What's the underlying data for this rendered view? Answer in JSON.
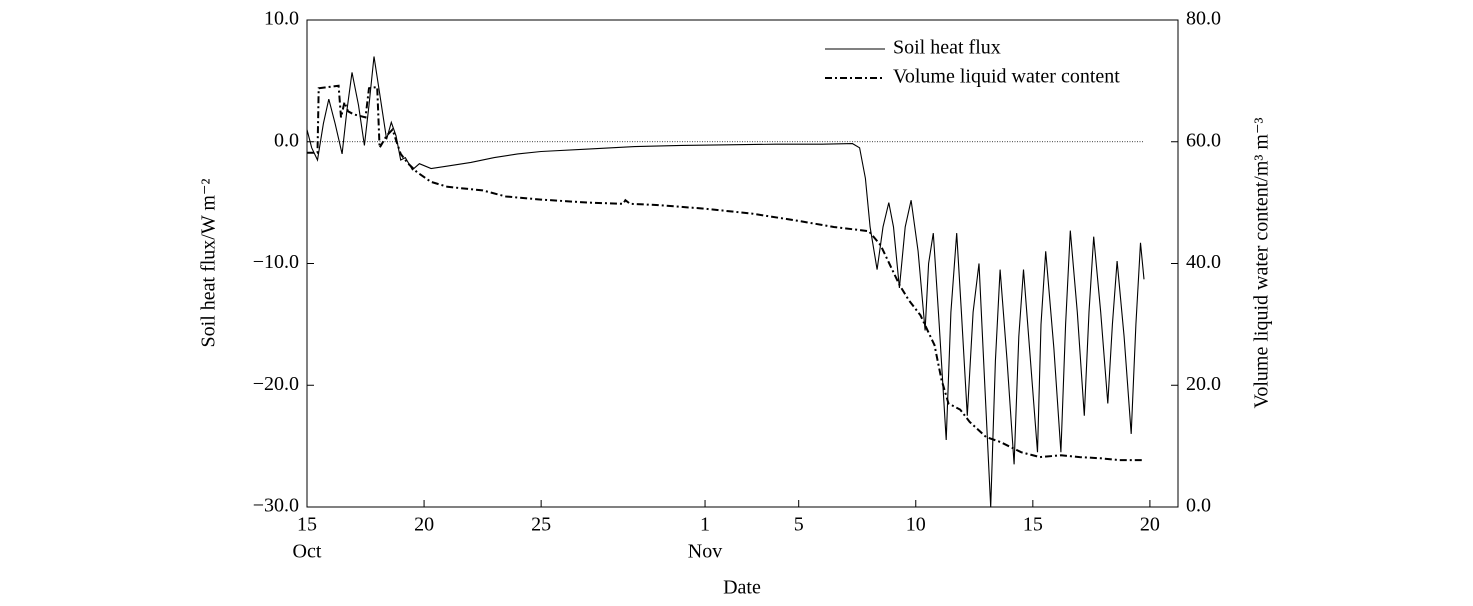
{
  "chart_data": {
    "type": "line",
    "xlabel": "Date",
    "ylabel": "Soil heat flux/W m⁻²",
    "y2label": "Volume liquid water content/m³ m⁻³",
    "xlim": [
      0,
      37.2
    ],
    "xticks": [
      {
        "value": 0,
        "label": "15"
      },
      {
        "value": 5,
        "label": "20"
      },
      {
        "value": 10,
        "label": "25"
      },
      {
        "value": 17,
        "label": "1"
      },
      {
        "value": 21,
        "label": "5"
      },
      {
        "value": 26,
        "label": "10"
      },
      {
        "value": 31,
        "label": "15"
      },
      {
        "value": 36,
        "label": "20"
      }
    ],
    "xmonths": [
      {
        "value": 0,
        "label": "Oct"
      },
      {
        "value": 17,
        "label": "Nov"
      }
    ],
    "ylim": [
      -30,
      10
    ],
    "yticks": [
      {
        "value": 10,
        "label": "10.0"
      },
      {
        "value": 0,
        "label": "0.0"
      },
      {
        "value": -10,
        "label": "−10.0"
      },
      {
        "value": -20,
        "label": "−20.0"
      },
      {
        "value": -30,
        "label": "−30.0"
      }
    ],
    "y2lim": [
      0,
      80
    ],
    "y2ticks": [
      {
        "value": 80,
        "label": "80.0"
      },
      {
        "value": 60,
        "label": "60.0"
      },
      {
        "value": 40,
        "label": "40.0"
      },
      {
        "value": 20,
        "label": "20.0"
      },
      {
        "value": 0,
        "label": "0.0"
      }
    ],
    "reference_line": 0,
    "legend": "upper right",
    "series": [
      {
        "name": "Soil heat flux",
        "color": "#000000",
        "dash": "solid",
        "x": [
          0,
          0.2,
          0.45,
          0.7,
          0.93,
          1.2,
          1.5,
          1.7,
          1.92,
          2.2,
          2.45,
          2.65,
          2.86,
          3.1,
          3.4,
          3.6,
          3.8,
          4.0,
          4.2,
          4.5,
          4.8,
          5.3,
          6,
          7,
          8,
          9,
          10,
          12,
          14,
          16,
          18,
          20,
          22,
          23.3,
          23.6,
          23.85,
          24.05,
          24.35,
          24.6,
          24.85,
          25.05,
          25.3,
          25.55,
          25.8,
          26.1,
          26.4,
          26.55,
          26.75,
          27.0,
          27.3,
          27.5,
          27.75,
          27.95,
          28.2,
          28.45,
          28.7,
          28.95,
          29.2,
          29.4,
          29.6,
          29.9,
          30.2,
          30.4,
          30.6,
          30.9,
          31.2,
          31.35,
          31.55,
          31.9,
          32.2,
          32.4,
          32.6,
          32.9,
          33.2,
          33.4,
          33.6,
          33.9,
          34.2,
          34.4,
          34.6,
          34.9,
          35.2,
          35.4,
          35.6,
          35.75
        ],
        "values": [
          1.0,
          -0.5,
          -1.5,
          1.5,
          3.5,
          1.5,
          -1.0,
          2.5,
          5.7,
          3,
          -0.3,
          3,
          7.0,
          4,
          0.2,
          1.6,
          0.5,
          -1.5,
          -1.3,
          -2.3,
          -1.8,
          -2.2,
          -2.0,
          -1.7,
          -1.3,
          -1.0,
          -0.8,
          -0.6,
          -0.4,
          -0.3,
          -0.25,
          -0.2,
          -0.2,
          -0.15,
          -0.5,
          -3,
          -7,
          -10.5,
          -7,
          -5,
          -7,
          -12,
          -7,
          -4.8,
          -9,
          -15.5,
          -10,
          -7.5,
          -15,
          -24.5,
          -14,
          -7.5,
          -14,
          -22.5,
          -14,
          -10,
          -20,
          -30,
          -18,
          -10.5,
          -18,
          -26.5,
          -16,
          -10.5,
          -18,
          -25.5,
          -15,
          -9,
          -17,
          -25.5,
          -15,
          -7.3,
          -14,
          -22.5,
          -14,
          -7.8,
          -14,
          -21.5,
          -15,
          -9.8,
          -16,
          -24,
          -15,
          -8.3,
          -11.3
        ]
      },
      {
        "name": "Volume liquid water content",
        "color": "#000000",
        "dash": "dashdot",
        "axis": "y2",
        "x": [
          0,
          0.45,
          0.5,
          1.35,
          1.45,
          1.6,
          1.75,
          2.0,
          2.5,
          2.65,
          3.0,
          3.1,
          3.4,
          3.65,
          4.0,
          4.3,
          4.7,
          5.3,
          6,
          7.5,
          8.5,
          10,
          12,
          13.5,
          13.6,
          13.8,
          15,
          17,
          19,
          21,
          22.5,
          24,
          24.5,
          25.3,
          25.7,
          26.2,
          26.8,
          27.1,
          27.4,
          27.9,
          28.3,
          29.0,
          29.6,
          30.5,
          31.3,
          32.2,
          33.0,
          33.9,
          34.7,
          35.7
        ],
        "values": [
          58.2,
          58.2,
          68.8,
          69.2,
          64,
          66.5,
          65,
          64.5,
          64,
          68.8,
          69,
          59,
          61,
          62,
          58,
          56.5,
          55,
          53.4,
          52.6,
          52,
          51,
          50.5,
          50,
          49.8,
          50.4,
          49.8,
          49.6,
          49,
          48.2,
          47,
          46,
          45.3,
          43,
          36.5,
          34,
          31.5,
          26.6,
          20.9,
          17,
          16,
          14,
          11.5,
          10.7,
          9,
          8.2,
          8.5,
          8.2,
          8,
          7.7,
          7.7
        ]
      }
    ]
  }
}
